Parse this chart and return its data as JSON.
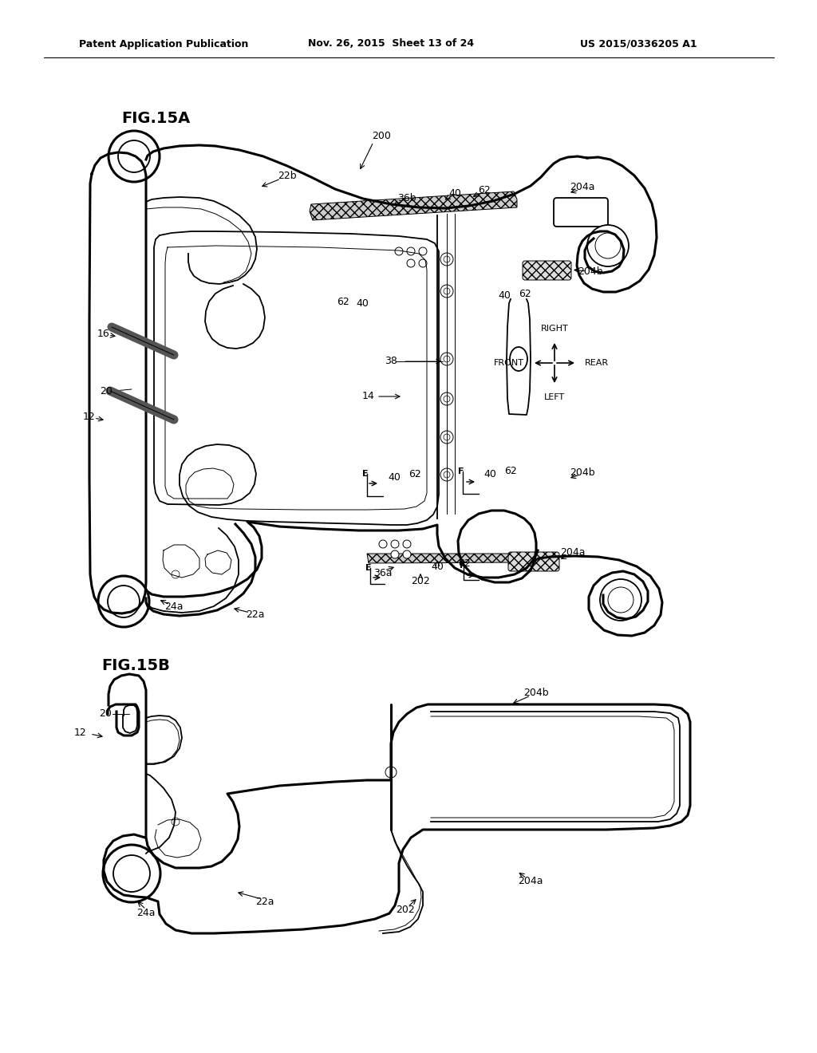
{
  "header_left": "Patent Application Publication",
  "header_mid": "Nov. 26, 2015  Sheet 13 of 24",
  "header_right": "US 2015/0336205 A1",
  "fig_a_label": "FIG.15A",
  "fig_b_label": "FIG.15B",
  "background": "#ffffff"
}
